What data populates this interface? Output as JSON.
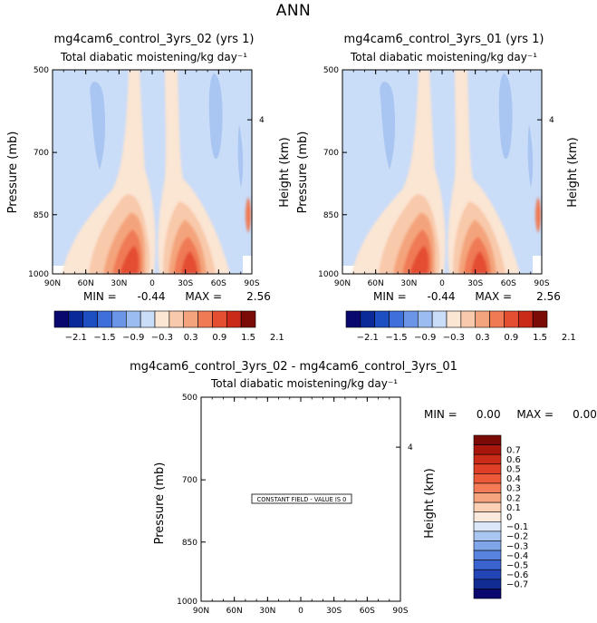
{
  "figure": {
    "title": "ANN"
  },
  "panels": [
    {
      "title": "mg4cam6_control_3yrs_02 (yrs 1)",
      "subtitle": "Total diabatic moistening/kg day⁻¹",
      "min_label": "MIN =",
      "min_value": "-0.44",
      "max_label": "MAX =",
      "max_value": "2.56"
    },
    {
      "title": "mg4cam6_control_3yrs_01 (yrs 1)",
      "subtitle": "Total diabatic moistening/kg day⁻¹",
      "min_label": "MIN =",
      "min_value": "-0.44",
      "max_label": "MAX =",
      "max_value": "2.56"
    },
    {
      "title": "mg4cam6_control_3yrs_02 - mg4cam6_control_3yrs_01",
      "subtitle": "Total diabatic moistening/kg day⁻¹",
      "min_label": "MIN =",
      "min_value": "0.00",
      "max_label": "MAX =",
      "max_value": "0.00",
      "constant_field_label": "CONSTANT FIELD - VALUE IS 0"
    }
  ],
  "chart_data": [
    {
      "type": "heatmap",
      "title": "mg4cam6_control_3yrs_02 (yrs 1)",
      "subtitle": "Total diabatic moistening/kg day⁻¹",
      "xlabel": "",
      "ylabel": "Pressure (mb)",
      "y2label": "Height (km)",
      "x_ticks": [
        "90N",
        "60N",
        "30N",
        "0",
        "30S",
        "60S",
        "90S"
      ],
      "y_ticks": [
        "500",
        "700",
        "850",
        "1000"
      ],
      "y2_ticks": [
        "4"
      ],
      "min": -0.44,
      "max": 2.56,
      "colorbar_ticks": [
        "-2.1",
        "-1.5",
        "-0.9",
        "-0.3",
        "0.3",
        "0.9",
        "1.5",
        "2.1"
      ],
      "colorbar_colors": [
        "#08086e",
        "#0b2a9a",
        "#1e4fc2",
        "#3f6fdb",
        "#6b95e6",
        "#9bbcf0",
        "#c9dcf8",
        "#fbe5d3",
        "#f8c9aa",
        "#f4a47c",
        "#ef7a54",
        "#e44e31",
        "#c92b18",
        "#7a0b06"
      ]
    },
    {
      "type": "heatmap",
      "title": "mg4cam6_control_3yrs_01 (yrs 1)",
      "subtitle": "Total diabatic moistening/kg day⁻¹",
      "xlabel": "",
      "ylabel": "Pressure (mb)",
      "y2label": "Height (km)",
      "x_ticks": [
        "90N",
        "60N",
        "30N",
        "0",
        "30S",
        "60S",
        "90S"
      ],
      "y_ticks": [
        "500",
        "700",
        "850",
        "1000"
      ],
      "y2_ticks": [
        "4"
      ],
      "min": -0.44,
      "max": 2.56,
      "colorbar_ticks": [
        "-2.1",
        "-1.5",
        "-0.9",
        "-0.3",
        "0.3",
        "0.9",
        "1.5",
        "2.1"
      ],
      "colorbar_colors": [
        "#08086e",
        "#0b2a9a",
        "#1e4fc2",
        "#3f6fdb",
        "#6b95e6",
        "#9bbcf0",
        "#c9dcf8",
        "#fbe5d3",
        "#f8c9aa",
        "#f4a47c",
        "#ef7a54",
        "#e44e31",
        "#c92b18",
        "#7a0b06"
      ]
    },
    {
      "type": "heatmap",
      "title": "mg4cam6_control_3yrs_02 - mg4cam6_control_3yrs_01",
      "subtitle": "Total diabatic moistening/kg day⁻¹",
      "xlabel": "",
      "ylabel": "Pressure (mb)",
      "y2label": "Height (km)",
      "x_ticks": [
        "90N",
        "60N",
        "30N",
        "0",
        "30S",
        "60S",
        "90S"
      ],
      "y_ticks": [
        "500",
        "700",
        "850",
        "1000"
      ],
      "y2_ticks": [
        "4"
      ],
      "min": 0.0,
      "max": 0.0,
      "colorbar_ticks": [
        "0.7",
        "0.6",
        "0.5",
        "0.4",
        "0.3",
        "0.2",
        "0.1",
        "0",
        "-0.1",
        "-0.2",
        "-0.3",
        "-0.4",
        "-0.5",
        "-0.6",
        "-0.7"
      ],
      "colorbar_colors": [
        "#7a0b06",
        "#a9170c",
        "#c92b18",
        "#de3f25",
        "#ec5a3a",
        "#f37b56",
        "#f6a47e",
        "#fbd0b4",
        "#fbeadb",
        "#dce8fa",
        "#a9c5f1",
        "#7ea6e9",
        "#5883df",
        "#3a63d0",
        "#2344b5",
        "#112c93",
        "#08086e"
      ]
    }
  ]
}
